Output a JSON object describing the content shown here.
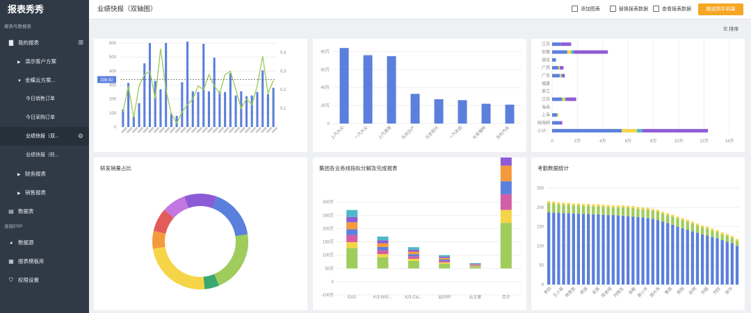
{
  "app": {
    "brand": "报表秀秀"
  },
  "sidebar": {
    "section1": "报表与数据表",
    "my_reports": "我的报表",
    "items": [
      {
        "label": "演示客户方案"
      },
      {
        "label": "金蝶云方案..."
      },
      {
        "label": "今日销售订单"
      },
      {
        "label": "今日采购订单"
      },
      {
        "label": "业绩快报（双..."
      },
      {
        "label": "业绩快报（柱..."
      },
      {
        "label": "财务报表"
      },
      {
        "label": "销售报表"
      }
    ],
    "datasheet": "数据表",
    "section2": "连接ERP",
    "datasource": "数据源",
    "template": "报表模板库",
    "permission": "权限设置"
  },
  "topbar": {
    "title": "业绩快报（双轴图）",
    "actions": [
      "添加图表",
      "替换报表数据",
      "查看报表数据"
    ],
    "primary_button": "推送到手机端",
    "sort": "排序"
  },
  "colors": {
    "blue": "#5b7fdc",
    "green": "#9fcc5b",
    "sidebar": "#2f3a46",
    "orange": "#f5a623"
  },
  "charts": [
    {
      "id": "dual-axis",
      "type": "bar+line",
      "y_ticks": [
        "0",
        "100",
        "200",
        "300",
        "400",
        "500",
        "600"
      ],
      "y2_ticks": [
        "0.1",
        "0.2",
        "0.3",
        "0.4"
      ],
      "reference_label": "338.92",
      "reference_value": 338.92,
      "bars": [
        125,
        315,
        75,
        170,
        455,
        600,
        330,
        270,
        600,
        95,
        80,
        320,
        610,
        255,
        250,
        595,
        255,
        495,
        255,
        250,
        385,
        225,
        255,
        220,
        225,
        250,
        405,
        235,
        280
      ],
      "line": [
        0.08,
        0.22,
        0.05,
        0.22,
        0.28,
        0.3,
        0.15,
        0.42,
        0.2,
        0.07,
        0.02,
        0.08,
        0.12,
        0.15,
        0.22,
        0.2,
        0.28,
        0.22,
        0.18,
        0.28,
        0.3,
        0.2,
        0.1,
        0.15,
        0.12,
        0.22,
        0.38,
        0.18,
        0.25
      ]
    },
    {
      "id": "top-middle-bar",
      "type": "bar",
      "y_ticks": [
        "0",
        "20万",
        "40万",
        "60万",
        "80万"
      ],
      "categories": [
        "上汽大众",
        "一汽大众",
        "上汽通用",
        "东风日产",
        "北京现代",
        "一汽丰田",
        "长安福特",
        "吉利汽车"
      ],
      "values": [
        84,
        76,
        75,
        33,
        27,
        26,
        22,
        21
      ]
    },
    {
      "id": "region-horizontal-bar",
      "type": "stacked-bar-horizontal",
      "categories": [
        "江苏",
        "安徽",
        "湖北",
        "广西",
        "广东",
        "福建",
        "浙江",
        "江苏",
        "海南",
        "上海",
        "国海鸥",
        "小计："
      ],
      "x_ticks": [
        "0",
        "2万",
        "4万",
        "6万",
        "8万",
        "10万",
        "12万",
        "14万"
      ],
      "series": [
        {
          "values": [
            0.7,
            1.2,
            0.3,
            0.5,
            0.6,
            0,
            0,
            0.8,
            0,
            0.4,
            0.6,
            5.5
          ]
        },
        {
          "values": [
            0,
            0.3,
            0,
            0.1,
            0.1,
            0,
            0,
            0.2,
            0,
            0.1,
            0,
            1.2
          ]
        },
        {
          "values": [
            0,
            0.2,
            0,
            0,
            0.1,
            0,
            0,
            0.1,
            0,
            0,
            0,
            0.4
          ]
        },
        {
          "values": [
            0.8,
            2.7,
            0,
            0.3,
            0.2,
            0,
            0,
            0.8,
            0,
            0,
            0.2,
            5.2
          ]
        }
      ]
    },
    {
      "id": "donut",
      "type": "pie",
      "title": "研发销量占比",
      "slices": [
        17,
        21,
        5,
        24,
        6,
        8,
        8,
        11
      ]
    },
    {
      "id": "stacked-group",
      "type": "stacked-bar",
      "title": "集团各业务线指标分解及完成报表",
      "y_ticks": [
        "-100万",
        "0",
        "50万",
        "100万",
        "150万",
        "200万",
        "250万",
        "300万"
      ],
      "categories": [
        "EAS",
        "K/3 WIS...",
        "K/3 Clo...",
        "云ERP",
        "云之家",
        "合计"
      ],
      "totals": [
        220,
        120,
        80,
        50,
        20,
        490
      ]
    },
    {
      "id": "attendance",
      "type": "stacked-bar",
      "title": "考勤数据统计",
      "y_ticks": [
        "0",
        "50",
        "100",
        "150",
        "200",
        "250"
      ],
      "categories": [
        "李四",
        "王小英",
        "林思思",
        "杨波",
        "吴昊",
        "陈金城",
        "刘晓东",
        "张敏",
        "郭小平",
        "胡大伟",
        "黄丽",
        "周刚",
        "赵明",
        "孙超",
        "刘欣",
        "徐华"
      ],
      "blue": [
        187,
        186,
        186,
        185,
        185,
        184,
        184,
        183,
        183,
        182,
        182,
        181,
        180,
        180,
        179,
        178,
        177,
        176,
        175,
        174,
        172,
        170,
        167,
        163,
        159,
        155,
        150,
        146,
        142,
        138,
        134,
        130,
        127,
        123,
        120,
        115,
        111,
        107,
        100
      ],
      "green": [
        24,
        24,
        22,
        22,
        22,
        21,
        21,
        21,
        21,
        21,
        21,
        21,
        21,
        20,
        21,
        22,
        22,
        22,
        21,
        21,
        22,
        21,
        22,
        21,
        21,
        21,
        21,
        21,
        21,
        20,
        19,
        18,
        18,
        17,
        16,
        15,
        15,
        14,
        13
      ],
      "yellow": [
        5,
        5,
        5,
        5,
        5,
        5,
        5,
        5,
        5,
        5,
        5,
        5,
        5,
        5,
        5,
        5,
        5,
        5,
        5,
        5,
        5,
        5,
        5,
        5,
        5,
        5,
        5,
        5,
        5,
        5,
        5,
        5,
        5,
        5,
        5,
        5,
        5,
        5,
        5
      ]
    }
  ]
}
